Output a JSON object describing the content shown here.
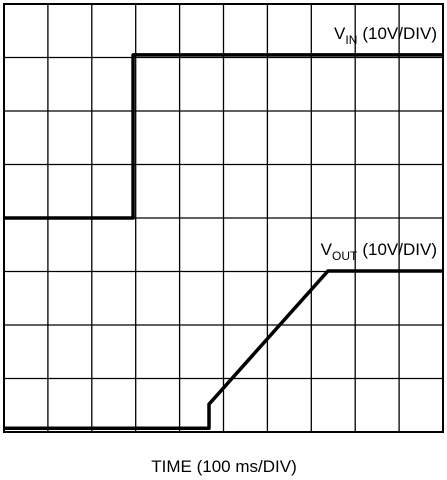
{
  "chart_data": {
    "type": "line",
    "xlabel": "TIME (100 ms/DIV)",
    "xlim": [
      0,
      10
    ],
    "ylim": [
      0,
      8
    ],
    "xticks": [
      0,
      1,
      2,
      3,
      4,
      5,
      6,
      7,
      8,
      9,
      10
    ],
    "yticks": [
      0,
      1,
      2,
      3,
      4,
      5,
      6,
      7,
      8
    ],
    "grid": true,
    "series": [
      {
        "name": "V",
        "name_subscript": "IN",
        "scale": "(10V/DIV)",
        "color": "#000000",
        "x": [
          0,
          2.94,
          2.94,
          10
        ],
        "values": [
          4.0,
          4.0,
          7.05,
          7.05
        ]
      },
      {
        "name": "V",
        "name_subscript": "OUT",
        "scale": "(10V/DIV)",
        "color": "#000000",
        "x": [
          0,
          4.67,
          4.67,
          7.38,
          10
        ],
        "values": [
          0.07,
          0.07,
          0.52,
          3.01,
          3.01
        ]
      }
    ]
  }
}
